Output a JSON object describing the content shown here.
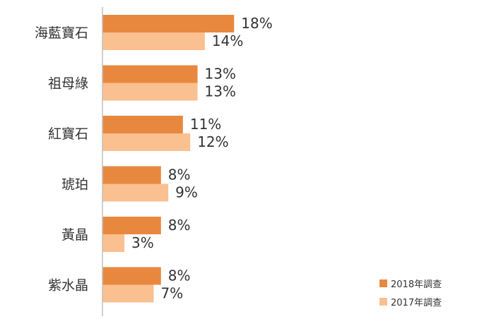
{
  "chart_data": {
    "type": "bar",
    "orientation": "horizontal",
    "categories": [
      "海藍寶石",
      "祖母綠",
      "紅寶石",
      "琥珀",
      "黃晶",
      "紫水晶"
    ],
    "series": [
      {
        "name": "2018年調查",
        "color": "#E8883F",
        "values": [
          18,
          13,
          11,
          8,
          8,
          8
        ],
        "labels": [
          "18%",
          "13%",
          "11%",
          "8%",
          "8%",
          "8%"
        ]
      },
      {
        "name": "2017年調查",
        "color": "#FAC090",
        "values": [
          14,
          13,
          12,
          9,
          3,
          7
        ],
        "labels": [
          "14%",
          "13%",
          "12%",
          "9%",
          "3%",
          "7%"
        ]
      }
    ],
    "xlim": [
      0,
      20
    ],
    "grid": false,
    "legend": "bottom-right",
    "axis_line_color": "#BFBFBF"
  }
}
